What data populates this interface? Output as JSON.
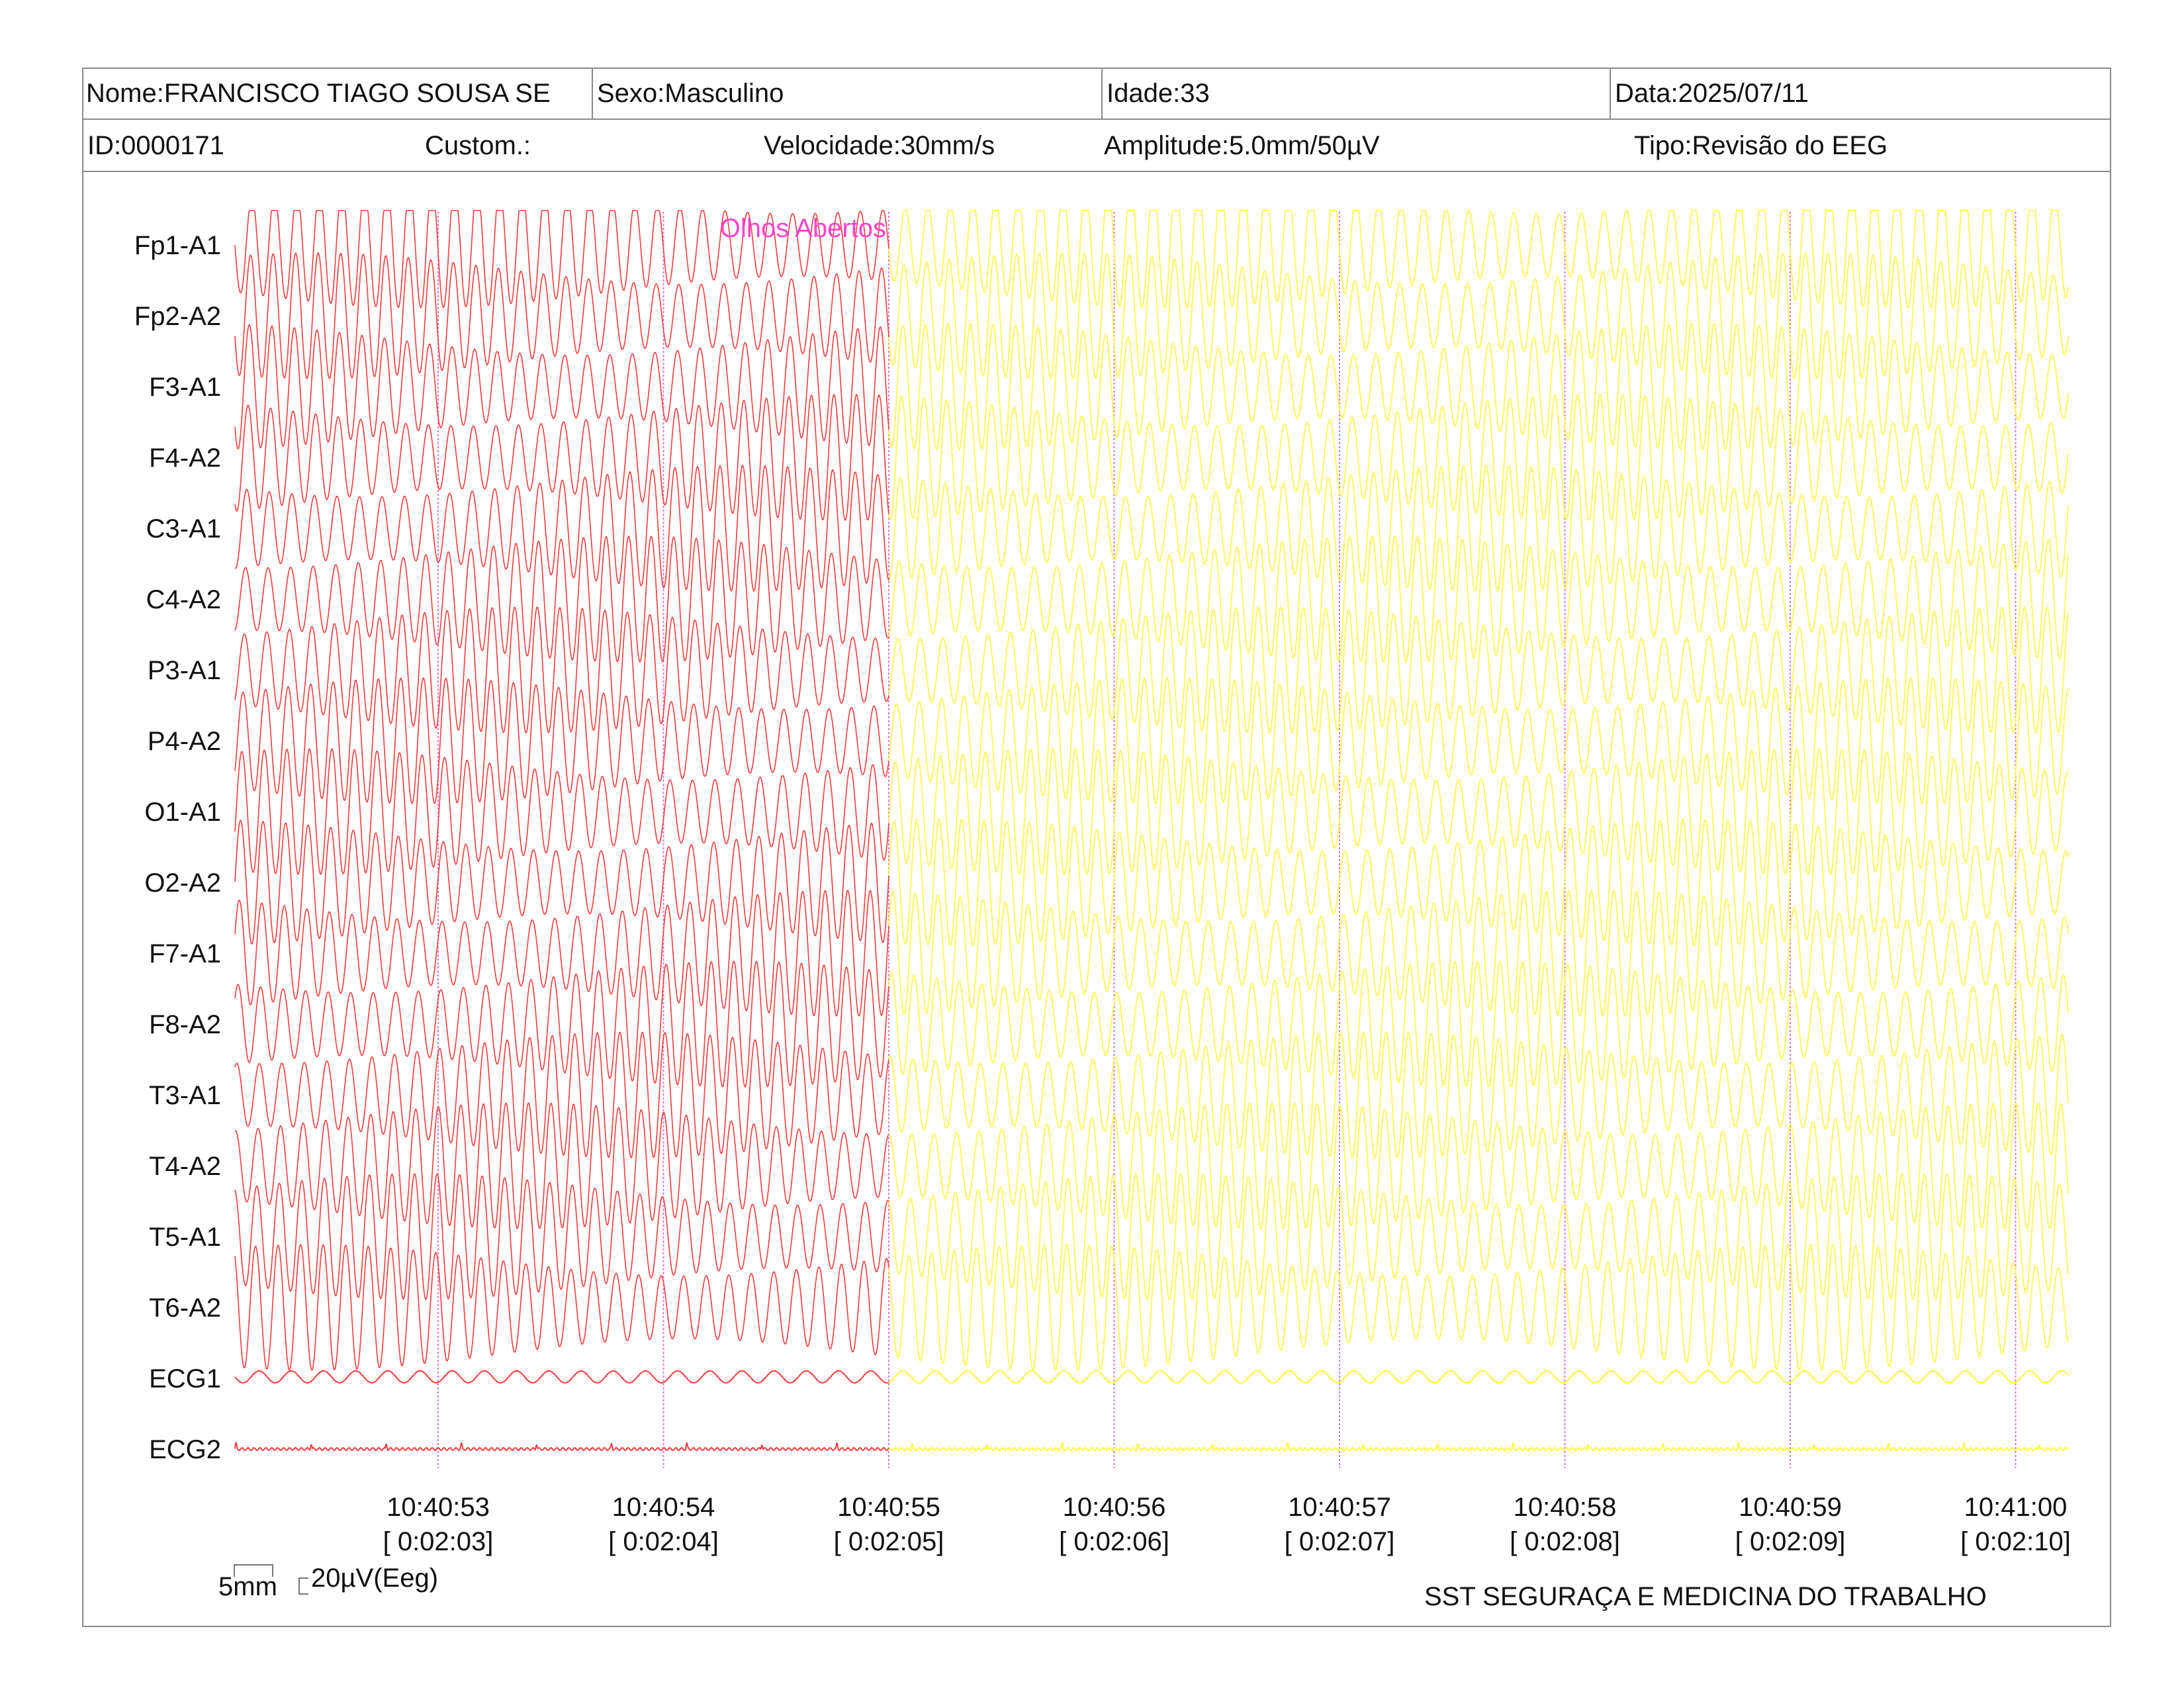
{
  "header": {
    "name": "Nome:FRANCISCO TIAGO SOUSA SE",
    "sex": "Sexo:Masculino",
    "age": "Idade:33",
    "date": "Data:2025/07/11",
    "id": "ID:0000171",
    "custom": "Custom.:",
    "speed": "Velocidade:30mm/s",
    "amplitude": "Amplitude:5.0mm/50µV",
    "type": "Tipo:Revisão do EEG"
  },
  "annotation": {
    "text": "Olhos Abertos",
    "color": "#ff44cc"
  },
  "calibration": {
    "time_scale": "5mm",
    "amp_scale": "20µV(Eeg)"
  },
  "footer": {
    "company": "SST SEGURAÇA E MEDICINA DO TRABALHO"
  },
  "colors": {
    "left_trace": "#ff3b3b",
    "right_trace": "#ffff33",
    "marker": "#e070e0",
    "border": "#8a8a8a"
  },
  "chart_data": {
    "type": "line",
    "channels": [
      "Fp1-A1",
      "Fp2-A2",
      "F3-A1",
      "F4-A2",
      "C3-A1",
      "C4-A2",
      "P3-A1",
      "P4-A2",
      "O1-A1",
      "O2-A2",
      "F7-A1",
      "F8-A2",
      "T3-A1",
      "T4-A2",
      "T5-A1",
      "T6-A2",
      "ECG1",
      "ECG2"
    ],
    "time_ticks": [
      {
        "clock": "10:40:53",
        "elapsed": "[ 0:02:03]"
      },
      {
        "clock": "10:40:54",
        "elapsed": "[ 0:02:04]"
      },
      {
        "clock": "10:40:55",
        "elapsed": "[ 0:02:05]"
      },
      {
        "clock": "10:40:56",
        "elapsed": "[ 0:02:06]"
      },
      {
        "clock": "10:40:57",
        "elapsed": "[ 0:02:07]"
      },
      {
        "clock": "10:40:58",
        "elapsed": "[ 0:02:08]"
      },
      {
        "clock": "10:40:59",
        "elapsed": "[ 0:02:09]"
      },
      {
        "clock": "10:41:00",
        "elapsed": "[ 0:02:10]"
      }
    ],
    "start_time": "10:40:52.1",
    "end_time": "10:41:00.2",
    "annotation_time": "10:40:55",
    "eeg_frequency_hz": 10,
    "ecg1_frequency_hz": 7,
    "ecg2_beat_rate_hz": 3
  }
}
